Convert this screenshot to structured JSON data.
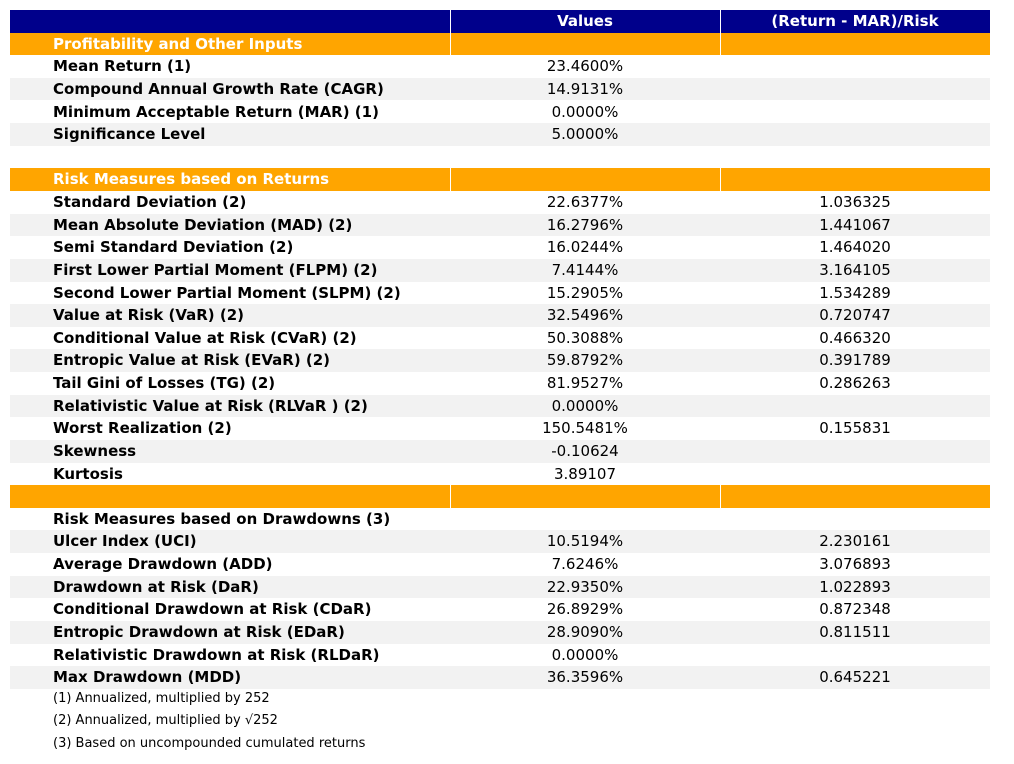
{
  "table": {
    "header": [
      "Values",
      "(Return - MAR)/Risk"
    ],
    "rows": [
      {
        "type": "section",
        "label": "Profitability and Other Inputs"
      },
      {
        "type": "data",
        "label": "Mean Return (1)",
        "value": "23.4600%"
      },
      {
        "type": "data",
        "label": "Compound Annual Growth Rate (CAGR)",
        "value": "14.9131%"
      },
      {
        "type": "data",
        "label": "Minimum Acceptable Return (MAR) (1)",
        "value": "0.0000%"
      },
      {
        "type": "data",
        "label": "Significance Level",
        "value": "5.0000%"
      },
      {
        "type": "blank"
      },
      {
        "type": "section",
        "label": "Risk Measures based on Returns"
      },
      {
        "type": "data",
        "label": "Standard Deviation (2)",
        "value": "22.6377%",
        "ratio": "1.036325"
      },
      {
        "type": "data",
        "label": "Mean Absolute Deviation (MAD) (2)",
        "value": "16.2796%",
        "ratio": "1.441067"
      },
      {
        "type": "data",
        "label": "Semi Standard Deviation (2)",
        "value": "16.0244%",
        "ratio": "1.464020"
      },
      {
        "type": "data",
        "label": "First Lower Partial Moment (FLPM) (2)",
        "value": "7.4144%",
        "ratio": "3.164105"
      },
      {
        "type": "data",
        "label": "Second Lower Partial Moment (SLPM) (2)",
        "value": "15.2905%",
        "ratio": "1.534289"
      },
      {
        "type": "data",
        "label": "Value at Risk (VaR) (2)",
        "value": "32.5496%",
        "ratio": "0.720747"
      },
      {
        "type": "data",
        "label": "Conditional Value at Risk (CVaR) (2)",
        "value": "50.3088%",
        "ratio": "0.466320"
      },
      {
        "type": "data",
        "label": "Entropic Value at Risk (EVaR) (2)",
        "value": "59.8792%",
        "ratio": "0.391789"
      },
      {
        "type": "data",
        "label": "Tail Gini of Losses (TG) (2)",
        "value": "81.9527%",
        "ratio": "0.286263"
      },
      {
        "type": "data",
        "label": "Relativistic Value at Risk (RLVaR ) (2)",
        "value": "0.0000%"
      },
      {
        "type": "data",
        "label": "Worst Realization (2)",
        "value": "150.5481%",
        "ratio": "0.155831"
      },
      {
        "type": "data",
        "label": "Skewness",
        "value": "-0.10624"
      },
      {
        "type": "data",
        "label": "Kurtosis",
        "value": "3.89107"
      },
      {
        "type": "section"
      },
      {
        "type": "data",
        "label": "Risk Measures based on Drawdowns (3)"
      },
      {
        "type": "data",
        "label": "Ulcer Index (UCI)",
        "value": "10.5194%",
        "ratio": "2.230161"
      },
      {
        "type": "data",
        "label": "Average Drawdown (ADD)",
        "value": "7.6246%",
        "ratio": "3.076893"
      },
      {
        "type": "data",
        "label": "Drawdown at Risk (DaR)",
        "value": "22.9350%",
        "ratio": "1.022893"
      },
      {
        "type": "data",
        "label": "Conditional Drawdown at Risk (CDaR)",
        "value": "26.8929%",
        "ratio": "0.872348"
      },
      {
        "type": "data",
        "label": "Entropic Drawdown at Risk (EDaR)",
        "value": "28.9090%",
        "ratio": "0.811511"
      },
      {
        "type": "data",
        "label": "Relativistic Drawdown at Risk (RLDaR)",
        "value": "0.0000%"
      },
      {
        "type": "data",
        "label": "Max Drawdown (MDD)",
        "value": "36.3596%",
        "ratio": "0.645221"
      }
    ],
    "footnotes": [
      "(1) Annualized, multiplied by 252",
      "(2) Annualized, multiplied by √252",
      "(3) Based on uncompounded cumulated returns"
    ]
  }
}
